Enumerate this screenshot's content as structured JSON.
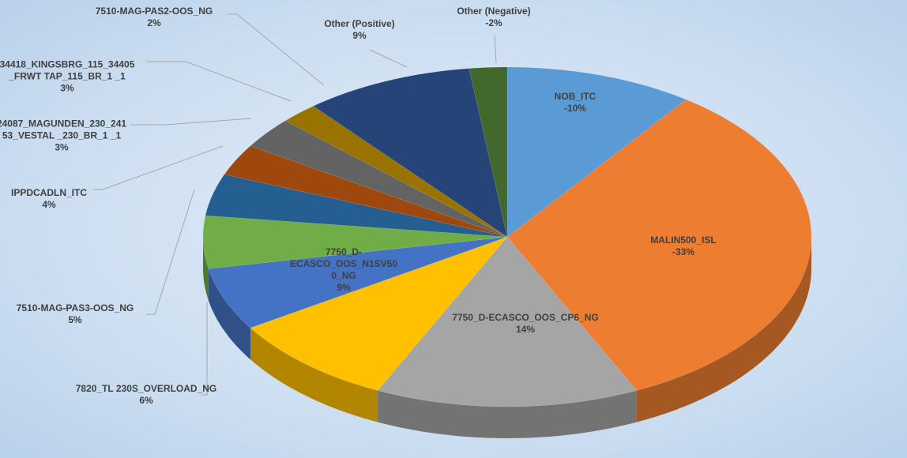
{
  "chart_data": {
    "type": "pie3d",
    "categories": [
      "NOB_ITC",
      "MALIN500_ISL",
      "7750_D-ECASCO_OOS_CP6_NG",
      "7750_D-ECASCO_OOS_N1SV500_NG",
      "7820_TL 230S_OVERLOAD_NG",
      "7510-MAG-PAS3-OOS_NG",
      "IPPDCADLN_ITC",
      "24087_MAGUNDEN_230_24153_VESTAL _230_BR_1 _1",
      "34418_KINGSBRG_115_34405_FRWT TAP_115_BR_1 _1",
      "7510-MAG-PAS2-OOS_NG",
      "Other (Positive)",
      "Other (Negative)"
    ],
    "values": [
      -10,
      -33,
      14,
      9,
      6,
      5,
      4,
      3,
      3,
      2,
      9,
      -2
    ],
    "value_labels": [
      "-10%",
      "-33%",
      "14%",
      "9%",
      "6%",
      "5%",
      "4%",
      "3%",
      "3%",
      "2%",
      "9%",
      "-2%"
    ],
    "colors": [
      "#5b9bd5",
      "#ed7d31",
      "#a5a5a5",
      "#ffc000",
      "#4472c4",
      "#70ad47",
      "#255e91",
      "#9e480e",
      "#636363",
      "#997300",
      "#264478",
      "#43682b"
    ]
  }
}
